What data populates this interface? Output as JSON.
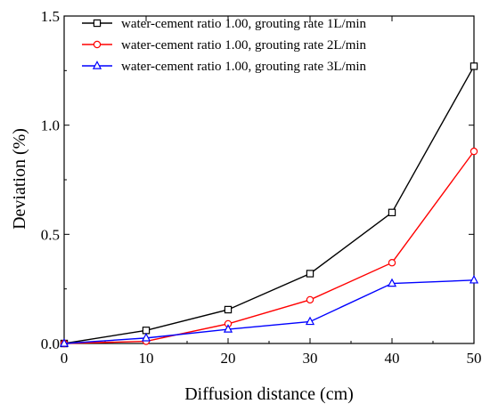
{
  "chart_data": {
    "type": "line",
    "title": "",
    "xlabel": "Diffusion distance (cm)",
    "ylabel": "Deviation (%)",
    "x": [
      0,
      10,
      20,
      30,
      40,
      50
    ],
    "xlim": [
      0,
      50
    ],
    "ylim": [
      0,
      1.5
    ],
    "x_ticks": [
      "0",
      "10",
      "20",
      "30",
      "40",
      "50"
    ],
    "y_ticks": [
      "0.0",
      "0.5",
      "1.0",
      "1.5"
    ],
    "grid": false,
    "legend_position": "top-left",
    "series": [
      {
        "name": "water-cement ratio  1.00, grouting rate  1L/min",
        "values": [
          0.0,
          0.06,
          0.155,
          0.32,
          0.6,
          1.27
        ],
        "color": "#000000",
        "marker": "square"
      },
      {
        "name": "water-cement ratio  1.00, grouting rate  2L/min",
        "values": [
          0.0,
          0.01,
          0.09,
          0.2,
          0.37,
          0.88
        ],
        "color": "#ff0000",
        "marker": "circle"
      },
      {
        "name": "water-cement ratio  1.00, grouting rate  3L/min",
        "values": [
          0.0,
          0.025,
          0.065,
          0.1,
          0.275,
          0.29
        ],
        "color": "#0000ff",
        "marker": "triangle"
      }
    ]
  }
}
